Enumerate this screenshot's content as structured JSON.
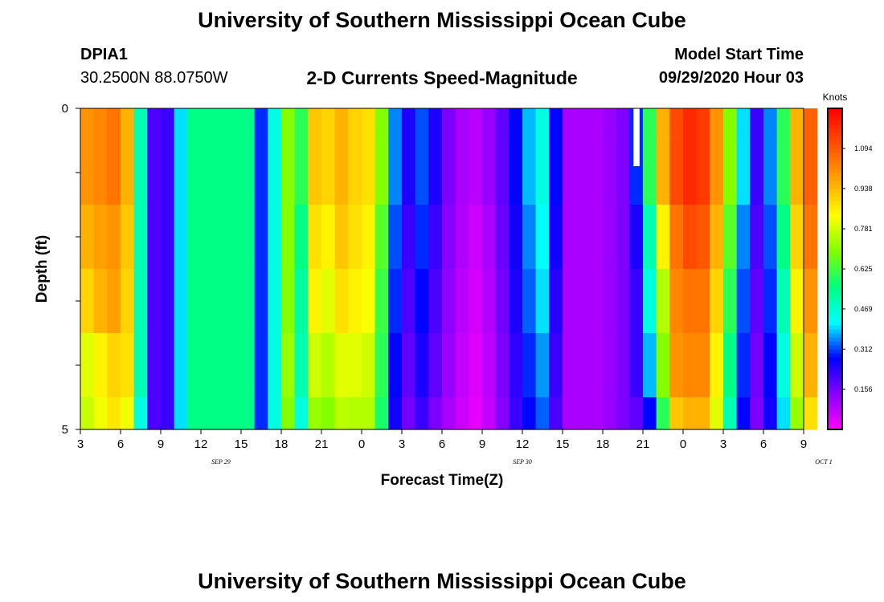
{
  "page": {
    "title_top": "University of Southern Mississippi Ocean Cube",
    "title_bottom": "University of Southern Mississippi Ocean Cube",
    "station_id": "DPIA1",
    "station_coords": "30.2500N 88.0750W",
    "model_start_label": "Model Start Time",
    "model_start_value": "09/29/2020 Hour 03"
  },
  "chart_data": {
    "type": "heatmap",
    "title": "2-D Currents Speed-Magnitude",
    "xlabel": "Forecast Time(Z)",
    "ylabel": "Depth (ft)",
    "units": "Knots",
    "x_hours": [
      0,
      54
    ],
    "ylim": [
      0,
      5
    ],
    "y_ticks": [
      "0",
      "5"
    ],
    "x_tick_labels": [
      "3",
      "6",
      "9",
      "12",
      "15",
      "18",
      "21",
      "0",
      "3",
      "6",
      "9",
      "12",
      "15",
      "18",
      "21",
      "0",
      "3",
      "6",
      "9"
    ],
    "date_labels": [
      {
        "hour": 10.5,
        "text": "SEP 29"
      },
      {
        "hour": 33,
        "text": "SEP 30"
      },
      {
        "hour": 55.5,
        "text": "OCT 1"
      }
    ],
    "colorbar": {
      "min": 0.0,
      "max": 1.25,
      "ticks": [
        "0.156",
        "0.312",
        "0.469",
        "0.625",
        "0.781",
        "0.938",
        "1.094"
      ],
      "tick_values": [
        0.156,
        0.312,
        0.469,
        0.625,
        0.781,
        0.938,
        1.094
      ],
      "colors": [
        "#ff00ff",
        "#8800ff",
        "#0000ff",
        "#00ffff",
        "#00ff80",
        "#80ff00",
        "#ffff00",
        "#ffa500",
        "#ff5000",
        "#ff0000"
      ]
    },
    "depth_layers": [
      0.0,
      0.5,
      1.5,
      2.5,
      3.5,
      4.5
    ],
    "missing_cell": {
      "hour": 41,
      "layer": 0
    },
    "speed_knots": [
      [
        1.0,
        1.0,
        0.95,
        0.9,
        0.8,
        0.77,
        0.7,
        0.65
      ],
      [
        1.02,
        1.02,
        0.98,
        0.95,
        0.85,
        0.82,
        0.75,
        0.7
      ],
      [
        1.05,
        1.05,
        1.0,
        0.98,
        0.9,
        0.87,
        0.82,
        0.77
      ],
      [
        0.95,
        0.95,
        0.92,
        0.9,
        0.88,
        0.82,
        0.78,
        0.76
      ],
      [
        0.5,
        0.5,
        0.5,
        0.5,
        0.5,
        0.45,
        0.45,
        0.43
      ],
      [
        0.2,
        0.2,
        0.2,
        0.2,
        0.2,
        0.2,
        0.2,
        0.2
      ],
      [
        0.22,
        0.22,
        0.22,
        0.22,
        0.22,
        0.22,
        0.22,
        0.22
      ],
      [
        0.4,
        0.4,
        0.4,
        0.4,
        0.4,
        0.4,
        0.4,
        0.4
      ],
      [
        0.55,
        0.55,
        0.55,
        0.55,
        0.55,
        0.55,
        0.55,
        0.55
      ],
      [
        0.55,
        0.55,
        0.55,
        0.55,
        0.55,
        0.55,
        0.55,
        0.55
      ],
      [
        0.55,
        0.55,
        0.55,
        0.55,
        0.55,
        0.55,
        0.55,
        0.55
      ],
      [
        0.55,
        0.55,
        0.55,
        0.55,
        0.55,
        0.55,
        0.55,
        0.55
      ],
      [
        0.55,
        0.55,
        0.55,
        0.55,
        0.55,
        0.55,
        0.55,
        0.55
      ],
      [
        0.3,
        0.3,
        0.3,
        0.3,
        0.3,
        0.3,
        0.3,
        0.3
      ],
      [
        0.45,
        0.45,
        0.45,
        0.45,
        0.45,
        0.45,
        0.45,
        0.45
      ],
      [
        0.7,
        0.7,
        0.7,
        0.7,
        0.72,
        0.7,
        0.7,
        0.7
      ],
      [
        0.6,
        0.6,
        0.55,
        0.52,
        0.5,
        0.45,
        0.48,
        0.48
      ],
      [
        0.92,
        0.92,
        0.88,
        0.85,
        0.78,
        0.72,
        0.72,
        0.7
      ],
      [
        0.9,
        0.9,
        0.85,
        0.8,
        0.75,
        0.7,
        0.68,
        0.66
      ],
      [
        0.95,
        0.95,
        0.92,
        0.88,
        0.8,
        0.76,
        0.72,
        0.68
      ],
      [
        0.9,
        0.9,
        0.88,
        0.85,
        0.8,
        0.75,
        0.72,
        0.7
      ],
      [
        0.88,
        0.88,
        0.85,
        0.83,
        0.78,
        0.75,
        0.72,
        0.7
      ],
      [
        0.7,
        0.7,
        0.65,
        0.62,
        0.6,
        0.58,
        0.56,
        0.55
      ],
      [
        0.35,
        0.35,
        0.32,
        0.3,
        0.28,
        0.26,
        0.25,
        0.25
      ],
      [
        0.25,
        0.25,
        0.22,
        0.2,
        0.18,
        0.16,
        0.15,
        0.15
      ],
      [
        0.32,
        0.32,
        0.3,
        0.28,
        0.25,
        0.22,
        0.2,
        0.2
      ],
      [
        0.25,
        0.25,
        0.22,
        0.2,
        0.18,
        0.15,
        0.14,
        0.13
      ],
      [
        0.15,
        0.15,
        0.14,
        0.13,
        0.12,
        0.1,
        0.1,
        0.1
      ],
      [
        0.1,
        0.1,
        0.09,
        0.08,
        0.07,
        0.06,
        0.05,
        0.05
      ],
      [
        0.08,
        0.08,
        0.06,
        0.05,
        0.04,
        0.03,
        0.02,
        0.02
      ],
      [
        0.12,
        0.12,
        0.1,
        0.09,
        0.08,
        0.07,
        0.06,
        0.06
      ],
      [
        0.18,
        0.18,
        0.17,
        0.16,
        0.15,
        0.14,
        0.14,
        0.13
      ],
      [
        0.28,
        0.28,
        0.26,
        0.25,
        0.23,
        0.22,
        0.21,
        0.2
      ],
      [
        0.38,
        0.38,
        0.35,
        0.33,
        0.3,
        0.28,
        0.26,
        0.25
      ],
      [
        0.45,
        0.45,
        0.42,
        0.4,
        0.36,
        0.33,
        0.3,
        0.28
      ],
      [
        0.28,
        0.28,
        0.26,
        0.24,
        0.22,
        0.2,
        0.19,
        0.18
      ],
      [
        0.1,
        0.1,
        0.1,
        0.1,
        0.1,
        0.1,
        0.1,
        0.1
      ],
      [
        0.1,
        0.1,
        0.1,
        0.1,
        0.1,
        0.1,
        0.1,
        0.1
      ],
      [
        0.1,
        0.1,
        0.1,
        0.1,
        0.1,
        0.1,
        0.1,
        0.1
      ],
      [
        0.12,
        0.12,
        0.12,
        0.12,
        0.12,
        0.12,
        0.12,
        0.12
      ],
      [
        0.15,
        0.15,
        0.15,
        0.15,
        0.15,
        0.15,
        0.15,
        0.15
      ],
      [
        0.3,
        0.3,
        0.25,
        0.22,
        0.22,
        0.18,
        0.16,
        0.16
      ],
      [
        0.6,
        0.6,
        0.5,
        0.45,
        0.38,
        0.28,
        0.25,
        0.25
      ],
      [
        0.95,
        0.95,
        0.85,
        0.75,
        0.7,
        0.6,
        0.55,
        0.5
      ],
      [
        1.12,
        1.12,
        1.05,
        1.02,
        1.0,
        0.92,
        0.85,
        0.78
      ],
      [
        1.18,
        1.18,
        1.12,
        1.05,
        1.02,
        0.95,
        0.88,
        0.82
      ],
      [
        1.15,
        1.15,
        1.1,
        1.05,
        1.02,
        0.95,
        0.9,
        0.85
      ],
      [
        1.0,
        1.0,
        0.95,
        0.9,
        0.85,
        0.8,
        0.75,
        0.7
      ],
      [
        0.7,
        0.7,
        0.65,
        0.6,
        0.55,
        0.5,
        0.45,
        0.4
      ],
      [
        0.4,
        0.4,
        0.35,
        0.32,
        0.3,
        0.28,
        0.26,
        0.25
      ],
      [
        0.22,
        0.22,
        0.2,
        0.18,
        0.16,
        0.15,
        0.14,
        0.14
      ],
      [
        0.35,
        0.35,
        0.32,
        0.3,
        0.28,
        0.26,
        0.25,
        0.25
      ],
      [
        0.6,
        0.6,
        0.55,
        0.5,
        0.45,
        0.4,
        0.38,
        0.35
      ],
      [
        0.95,
        0.95,
        0.9,
        0.85,
        0.78,
        0.72,
        0.65,
        0.6
      ],
      [
        1.08,
        1.08,
        1.05,
        1.0,
        0.95,
        0.88,
        0.8,
        0.75
      ]
    ]
  }
}
